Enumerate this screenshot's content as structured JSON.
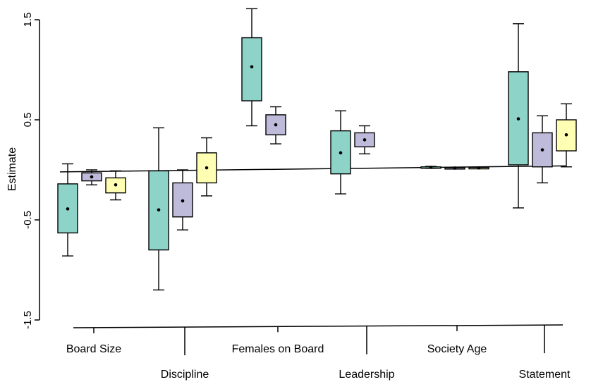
{
  "chart_data": {
    "type": "boxplot",
    "title": "",
    "ylabel": "Estimate",
    "xlabel": "",
    "ylim": [
      -1.5,
      1.5
    ],
    "y_ticks": [
      -1.5,
      -0.5,
      0.5,
      1.5
    ],
    "y_tick_labels": [
      "-1.5",
      "-0.5",
      "0.5",
      "1.5"
    ],
    "reference_line": {
      "from": -0.02,
      "to": 0.04
    },
    "categories": [
      "Board Size",
      "Discipline",
      "Females on Board",
      "Leadership",
      "Society Age",
      "Statement"
    ],
    "series_colors": [
      "#8dd3c7",
      "#bebada",
      "#ffffb3"
    ],
    "boxes": [
      {
        "category": "Board Size",
        "series": 0,
        "whisker_low": -0.86,
        "q1": -0.63,
        "median": -0.39,
        "q3": -0.14,
        "whisker_high": 0.06
      },
      {
        "category": "Board Size",
        "series": 1,
        "whisker_low": -0.15,
        "q1": -0.11,
        "median": -0.07,
        "q3": -0.03,
        "whisker_high": 0.0
      },
      {
        "category": "Board Size",
        "series": 2,
        "whisker_low": -0.3,
        "q1": -0.23,
        "median": -0.15,
        "q3": -0.08,
        "whisker_high": -0.01
      },
      {
        "category": "Discipline",
        "series": 0,
        "whisker_low": -1.2,
        "q1": -0.8,
        "median": -0.4,
        "q3": -0.01,
        "whisker_high": 0.42
      },
      {
        "category": "Discipline",
        "series": 1,
        "whisker_low": -0.6,
        "q1": -0.47,
        "median": -0.31,
        "q3": -0.13,
        "whisker_high": 0.0
      },
      {
        "category": "Discipline",
        "series": 2,
        "whisker_low": -0.26,
        "q1": -0.13,
        "median": 0.02,
        "q3": 0.17,
        "whisker_high": 0.32
      },
      {
        "category": "Females on Board",
        "series": 0,
        "whisker_low": 0.44,
        "q1": 0.69,
        "median": 1.03,
        "q3": 1.32,
        "whisker_high": 1.61
      },
      {
        "category": "Females on Board",
        "series": 1,
        "whisker_low": 0.26,
        "q1": 0.35,
        "median": 0.45,
        "q3": 0.55,
        "whisker_high": 0.63
      },
      {
        "category": "Leadership",
        "series": 0,
        "whisker_low": -0.24,
        "q1": -0.04,
        "median": 0.17,
        "q3": 0.39,
        "whisker_high": 0.59
      },
      {
        "category": "Leadership",
        "series": 1,
        "whisker_low": 0.16,
        "q1": 0.23,
        "median": 0.3,
        "q3": 0.37,
        "whisker_high": 0.44
      },
      {
        "category": "Society Age",
        "series": 0,
        "whisker_low": 0.015,
        "q1": 0.02,
        "median": 0.025,
        "q3": 0.03,
        "whisker_high": 0.035
      },
      {
        "category": "Society Age",
        "series": 1,
        "whisker_low": 0.01,
        "q1": 0.015,
        "median": 0.018,
        "q3": 0.022,
        "whisker_high": 0.025
      },
      {
        "category": "Society Age",
        "series": 2,
        "whisker_low": 0.012,
        "q1": 0.017,
        "median": 0.02,
        "q3": 0.024,
        "whisker_high": 0.028
      },
      {
        "category": "Statement",
        "series": 0,
        "whisker_low": -0.38,
        "q1": 0.05,
        "median": 0.51,
        "q3": 0.98,
        "whisker_high": 1.46
      },
      {
        "category": "Statement",
        "series": 1,
        "whisker_low": -0.13,
        "q1": 0.03,
        "median": 0.2,
        "q3": 0.37,
        "whisker_high": 0.54
      },
      {
        "category": "Statement",
        "series": 2,
        "whisker_low": 0.03,
        "q1": 0.19,
        "median": 0.35,
        "q3": 0.5,
        "whisker_high": 0.66
      }
    ]
  }
}
